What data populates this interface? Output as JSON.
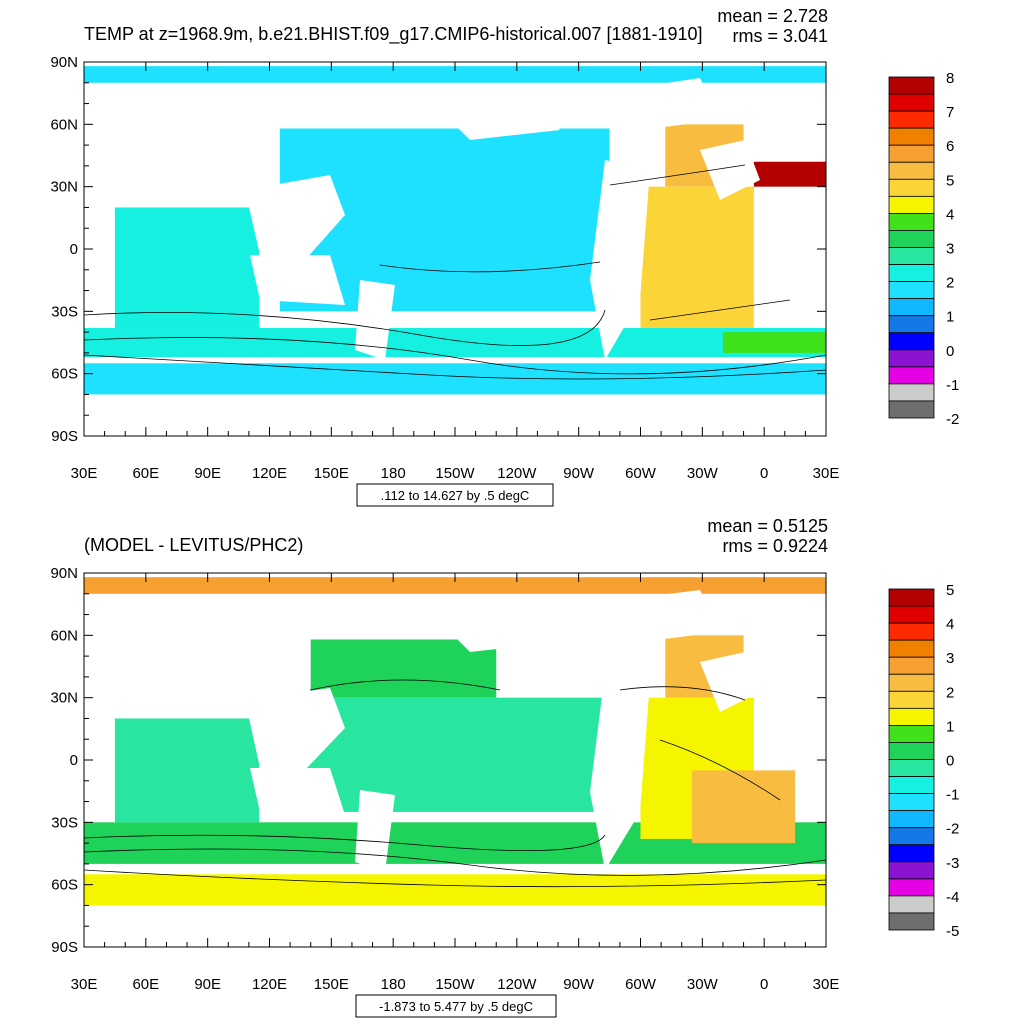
{
  "chart_data": [
    {
      "type": "heatmap",
      "panel": "top",
      "title": "TEMP at z=1968.9m, b.e21.BHIST.f09_g17.CMIP6-historical.007 [1881-1910]",
      "stats": {
        "mean": "mean = 2.728",
        "rms": "rms = 3.041"
      },
      "contour_info": ".112 to 14.627 by .5 degC",
      "x_ticks": [
        "30E",
        "60E",
        "90E",
        "120E",
        "150E",
        "180",
        "150W",
        "120W",
        "90W",
        "60W",
        "30W",
        "0",
        "30E"
      ],
      "y_ticks": [
        "90N",
        "60N",
        "30N",
        "0",
        "30S",
        "60S",
        "90S"
      ],
      "xlim_deg_east": [
        30,
        390
      ],
      "ylim_deg_north": [
        -90,
        90
      ],
      "colorbar_labels": [
        "8",
        "7",
        "6",
        "5",
        "4",
        "3",
        "2",
        "1",
        "0",
        "-1",
        "-2"
      ],
      "colorbar_colors": [
        "#b30000",
        "#e00000",
        "#ff2a00",
        "#f08000",
        "#f5a030",
        "#f8bd40",
        "#fbd538",
        "#f5f500",
        "#3fe21a",
        "#1ed25a",
        "#28e6a0",
        "#15f0e0",
        "#1ee0ff",
        "#10b8ff",
        "#1478e6",
        "#0000ff",
        "#8a14d2",
        "#e600e6",
        "#cccccc",
        "#6e6e6e"
      ],
      "regions": [
        {
          "name": "arctic",
          "color": "#1ee0ff",
          "lon": [
            30,
            390
          ],
          "lat": [
            80,
            88
          ]
        },
        {
          "name": "pacific",
          "color": "#1ee0ff",
          "lon": [
            125,
            285
          ],
          "lat": [
            -30,
            58
          ]
        },
        {
          "name": "indian",
          "color": "#15f0e0",
          "lon": [
            45,
            115
          ],
          "lat": [
            -40,
            20
          ]
        },
        {
          "name": "southern-band",
          "color": "#15f0e0",
          "lon": [
            30,
            390
          ],
          "lat": [
            -52,
            -38
          ]
        },
        {
          "name": "south-polar",
          "color": "#1ee0ff",
          "lon": [
            30,
            390
          ],
          "lat": [
            -70,
            -55
          ]
        },
        {
          "name": "atlantic-north",
          "color": "#f8bd40",
          "lon": [
            312,
            350
          ],
          "lat": [
            30,
            60
          ]
        },
        {
          "name": "atlantic",
          "color": "#fbd538",
          "lon": [
            300,
            355
          ],
          "lat": [
            -38,
            30
          ]
        },
        {
          "name": "atlantic-south",
          "color": "#3fe21a",
          "lon": [
            340,
            390
          ],
          "lat": [
            -50,
            -40
          ]
        },
        {
          "name": "mediterranean",
          "color": "#b30000",
          "lon": [
            355,
            390
          ],
          "lat": [
            30,
            42
          ]
        }
      ]
    },
    {
      "type": "heatmap",
      "panel": "bottom",
      "title": "(MODEL - LEVITUS/PHC2)",
      "stats": {
        "mean": "mean = 0.5125",
        "rms": "rms = 0.9224"
      },
      "contour_info": "-1.873 to 5.477 by .5 degC",
      "x_ticks": [
        "30E",
        "60E",
        "90E",
        "120E",
        "150E",
        "180",
        "150W",
        "120W",
        "90W",
        "60W",
        "30W",
        "0",
        "30E"
      ],
      "y_ticks": [
        "90N",
        "60N",
        "30N",
        "0",
        "30S",
        "60S",
        "90S"
      ],
      "xlim_deg_east": [
        30,
        390
      ],
      "ylim_deg_north": [
        -90,
        90
      ],
      "colorbar_labels": [
        "5",
        "4",
        "3",
        "2",
        "1",
        "0",
        "-1",
        "-2",
        "-3",
        "-4",
        "-5"
      ],
      "colorbar_colors": [
        "#b30000",
        "#e00000",
        "#ff2a00",
        "#f08000",
        "#f5a030",
        "#f8bd40",
        "#fbd538",
        "#f5f500",
        "#3fe21a",
        "#1ed25a",
        "#28e6a0",
        "#15f0e0",
        "#1ee0ff",
        "#10b8ff",
        "#1478e6",
        "#0000ff",
        "#8a14d2",
        "#e600e6",
        "#cccccc",
        "#6e6e6e"
      ],
      "regions": [
        {
          "name": "arctic",
          "color": "#f5a030",
          "lon": [
            30,
            390
          ],
          "lat": [
            80,
            88
          ]
        },
        {
          "name": "pacific-north",
          "color": "#1ed25a",
          "lon": [
            140,
            230
          ],
          "lat": [
            30,
            58
          ]
        },
        {
          "name": "pacific",
          "color": "#28e6a0",
          "lon": [
            125,
            285
          ],
          "lat": [
            -25,
            30
          ]
        },
        {
          "name": "indian",
          "color": "#28e6a0",
          "lon": [
            45,
            115
          ],
          "lat": [
            -30,
            20
          ]
        },
        {
          "name": "southern-band",
          "color": "#1ed25a",
          "lon": [
            30,
            390
          ],
          "lat": [
            -50,
            -30
          ]
        },
        {
          "name": "south-polar",
          "color": "#f5f500",
          "lon": [
            30,
            390
          ],
          "lat": [
            -70,
            -55
          ]
        },
        {
          "name": "atlantic-north",
          "color": "#f8bd40",
          "lon": [
            312,
            350
          ],
          "lat": [
            30,
            60
          ]
        },
        {
          "name": "atlantic",
          "color": "#f5f500",
          "lon": [
            300,
            355
          ],
          "lat": [
            -38,
            30
          ]
        },
        {
          "name": "atlantic-south",
          "color": "#f8bd40",
          "lon": [
            325,
            375
          ],
          "lat": [
            -40,
            -5
          ]
        }
      ]
    }
  ]
}
